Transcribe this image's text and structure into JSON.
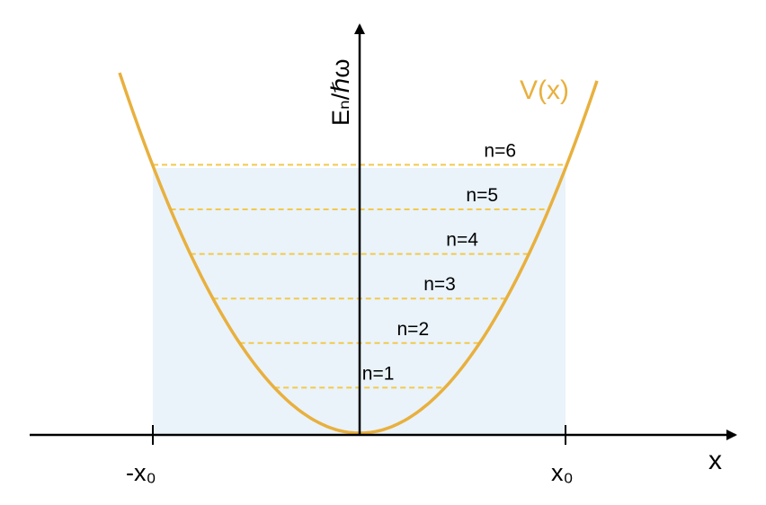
{
  "diagram": {
    "x_axis_label": "x",
    "y_axis_label": "Eₙ/ℏω",
    "curve_label": "V(x)",
    "x_ticks": [
      {
        "label": "-x₀",
        "value": -1
      },
      {
        "label": "x₀",
        "value": 1
      }
    ],
    "levels": [
      {
        "label": "n=1",
        "n": 1
      },
      {
        "label": "n=2",
        "n": 2
      },
      {
        "label": "n=3",
        "n": 3
      },
      {
        "label": "n=4",
        "n": 4
      },
      {
        "label": "n=5",
        "n": 5
      },
      {
        "label": "n=6",
        "n": 6
      }
    ],
    "colors": {
      "curve": "#E8B03E",
      "levels": "#F2C94C",
      "shading": "#EAF3FA",
      "axes": "#000000"
    }
  }
}
